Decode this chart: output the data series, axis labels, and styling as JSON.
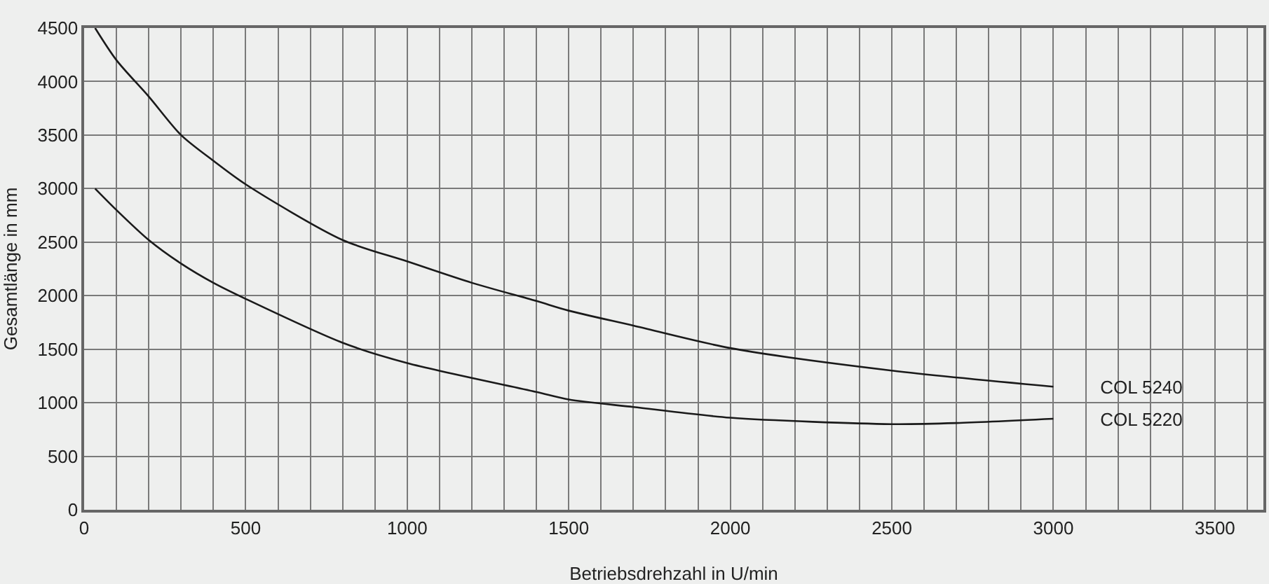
{
  "chart_data": {
    "type": "line",
    "xlabel": "Betriebsdrehzahl in U/min",
    "ylabel": "Gesamtlänge in mm",
    "xlim": [
      0,
      3650
    ],
    "ylim": [
      0,
      4500
    ],
    "xticks": [
      0,
      {
        "value": 100,
        "label": null
      },
      {
        "value": 200,
        "label": null
      },
      {
        "value": 300,
        "label": null
      },
      {
        "value": 400,
        "label": null
      },
      500,
      {
        "value": 600,
        "label": null
      },
      {
        "value": 700,
        "label": null
      },
      {
        "value": 800,
        "label": null
      },
      {
        "value": 900,
        "label": null
      },
      1000,
      {
        "value": 1100,
        "label": null
      },
      {
        "value": 1200,
        "label": null
      },
      {
        "value": 1300,
        "label": null
      },
      {
        "value": 1400,
        "label": null
      },
      1500,
      {
        "value": 1600,
        "label": null
      },
      {
        "value": 1700,
        "label": null
      },
      {
        "value": 1800,
        "label": null
      },
      {
        "value": 1900,
        "label": null
      },
      2000,
      {
        "value": 2100,
        "label": null
      },
      {
        "value": 2200,
        "label": null
      },
      {
        "value": 2300,
        "label": null
      },
      {
        "value": 2400,
        "label": null
      },
      2500,
      {
        "value": 2600,
        "label": null
      },
      {
        "value": 2700,
        "label": null
      },
      {
        "value": 2800,
        "label": null
      },
      {
        "value": 2900,
        "label": null
      },
      3000,
      {
        "value": 3100,
        "label": null
      },
      {
        "value": 3200,
        "label": null
      },
      {
        "value": 3300,
        "label": null
      },
      {
        "value": 3400,
        "label": null
      },
      3500,
      {
        "value": 3600,
        "label": null
      }
    ],
    "yticks": [
      0,
      500,
      1000,
      1500,
      2000,
      2500,
      3000,
      3500,
      4000,
      4500
    ],
    "grid": true,
    "legend": false,
    "marker": "none",
    "line_style": "solid",
    "series": [
      {
        "name": "COL 5240",
        "color": "#1a1a1a",
        "x": [
          34,
          100,
          200,
          300,
          400,
          500,
          800,
          1000,
          1200,
          1400,
          1500,
          1700,
          2000,
          2500,
          3000
        ],
        "values": [
          4500,
          4200,
          3860,
          3500,
          3260,
          3040,
          2520,
          2320,
          2120,
          1950,
          1860,
          1720,
          1510,
          1300,
          1150
        ]
      },
      {
        "name": "COL 5220",
        "color": "#1a1a1a",
        "x": [
          34,
          100,
          200,
          300,
          400,
          500,
          800,
          1000,
          1400,
          1500,
          1700,
          2000,
          2500,
          2700,
          3000
        ],
        "values": [
          3000,
          2800,
          2520,
          2300,
          2120,
          1970,
          1560,
          1370,
          1100,
          1030,
          960,
          860,
          800,
          810,
          850
        ]
      }
    ]
  }
}
